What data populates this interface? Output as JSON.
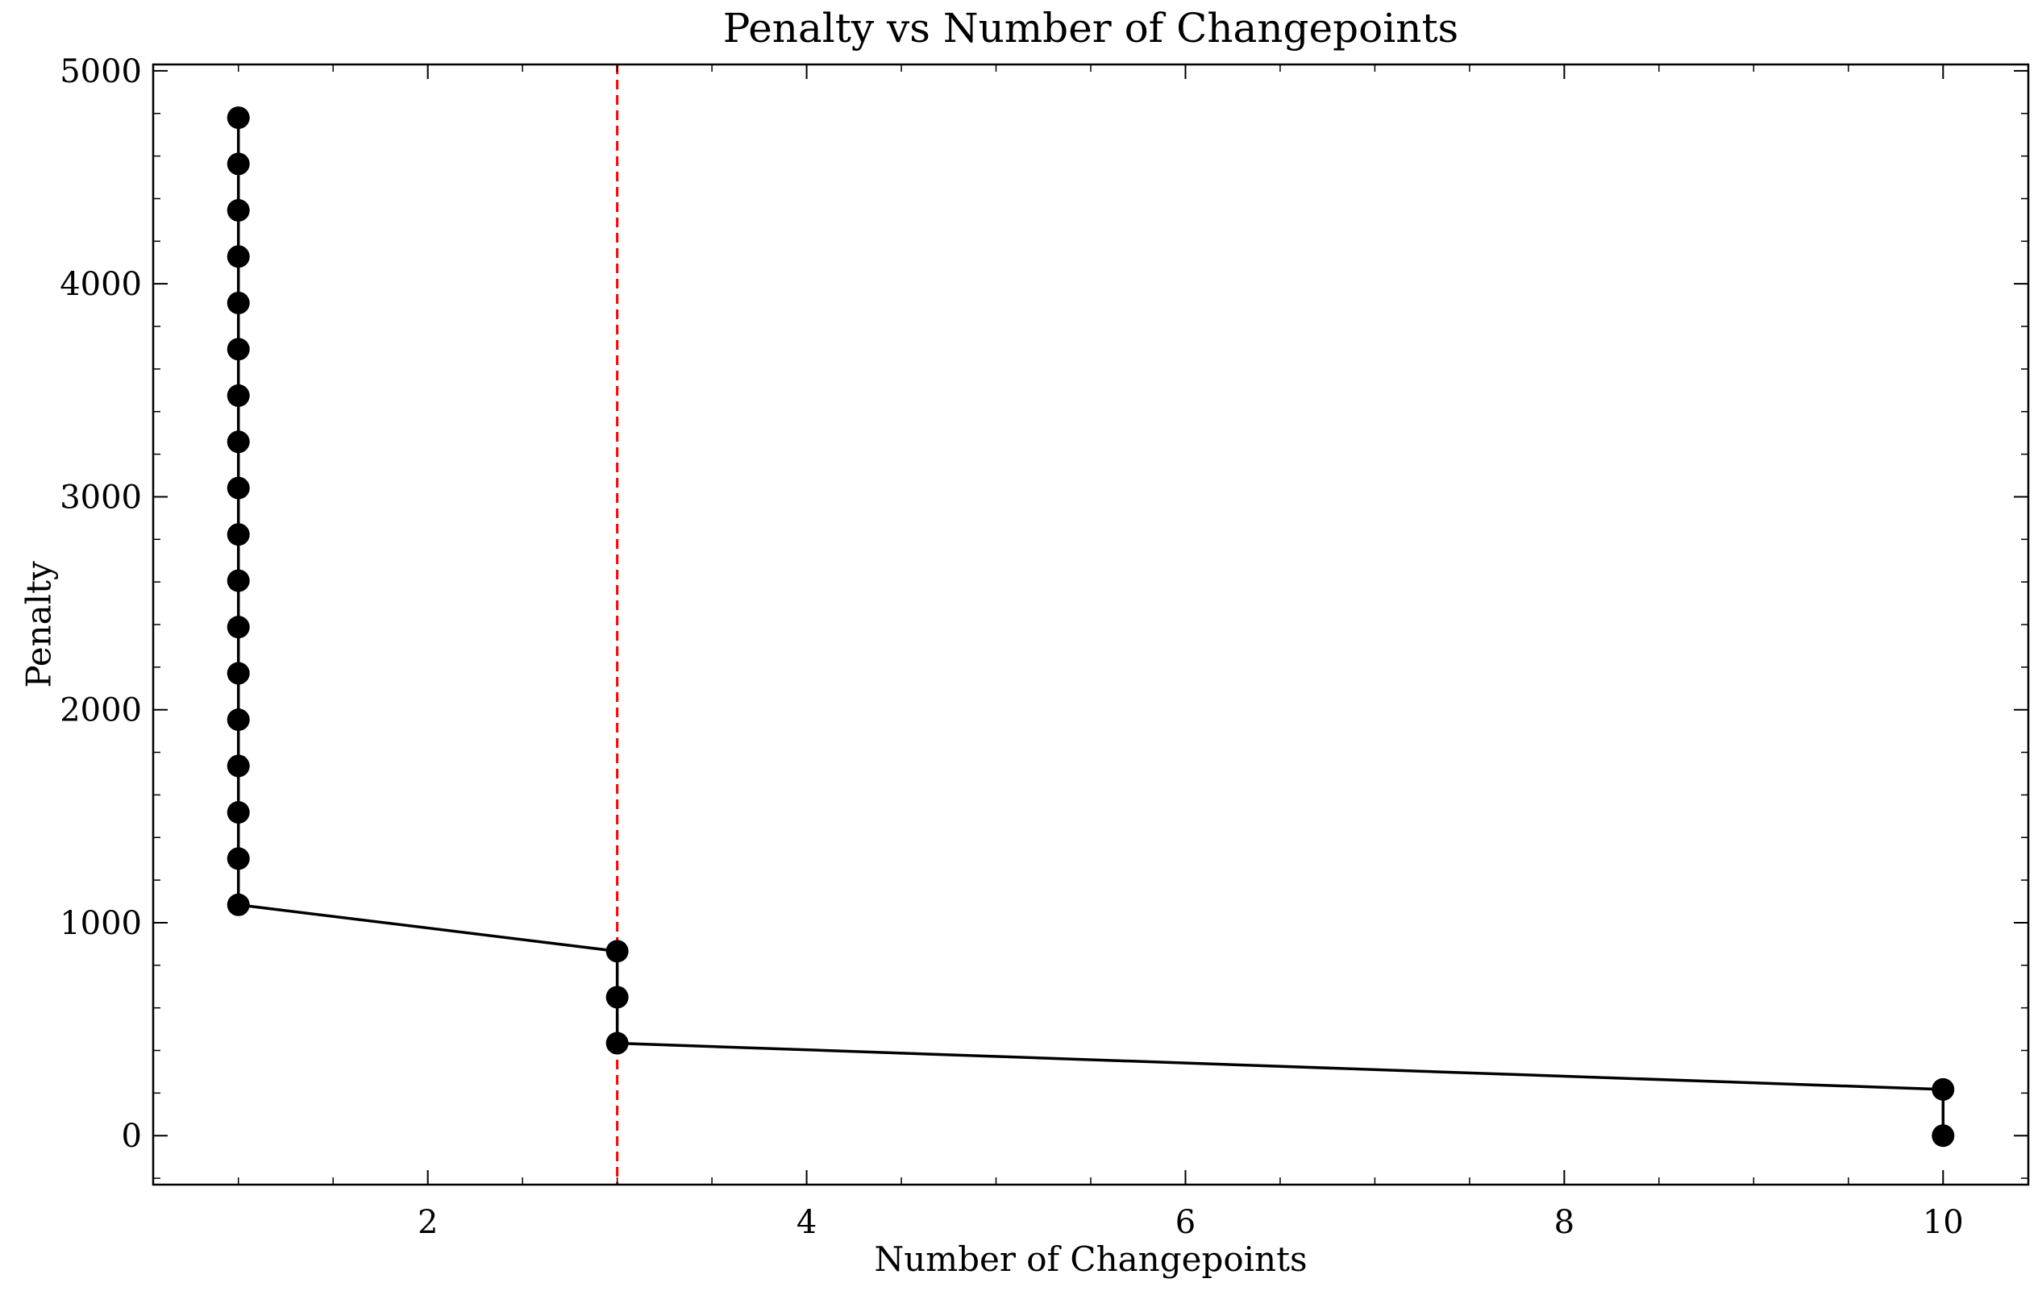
{
  "chart_data": {
    "type": "line",
    "title": "Penalty vs Number of Changepoints",
    "xlabel": "Number of Changepoints",
    "ylabel": "Penalty",
    "xlim": [
      0.55,
      10.45
    ],
    "ylim": [
      -230,
      5030
    ],
    "xticks": [
      2,
      4,
      6,
      8,
      10
    ],
    "yticks": [
      0,
      1000,
      2000,
      3000,
      4000,
      5000
    ],
    "xtick_labels": [
      "2",
      "4",
      "6",
      "8",
      "10"
    ],
    "ytick_labels": [
      "0",
      "1000",
      "2000",
      "3000",
      "4000",
      "5000"
    ],
    "grid": false,
    "series": [
      {
        "color": "#000000",
        "marker": "circle",
        "points": [
          [
            1,
            4780
          ],
          [
            1,
            4563
          ],
          [
            1,
            4345
          ],
          [
            1,
            4128
          ],
          [
            1,
            3910
          ],
          [
            1,
            3693
          ],
          [
            1,
            3475
          ],
          [
            1,
            3258
          ],
          [
            1,
            3041
          ],
          [
            1,
            2823
          ],
          [
            1,
            2606
          ],
          [
            1,
            2388
          ],
          [
            1,
            2171
          ],
          [
            1,
            1953
          ],
          [
            1,
            1736
          ],
          [
            1,
            1518
          ],
          [
            1,
            1301
          ],
          [
            1,
            1084
          ],
          [
            3,
            866
          ],
          [
            3,
            650
          ],
          [
            3,
            434
          ],
          [
            10,
            217
          ],
          [
            10,
            0
          ]
        ]
      }
    ],
    "vline": {
      "x": 3,
      "color": "#ff0000",
      "style": "dashed"
    }
  }
}
